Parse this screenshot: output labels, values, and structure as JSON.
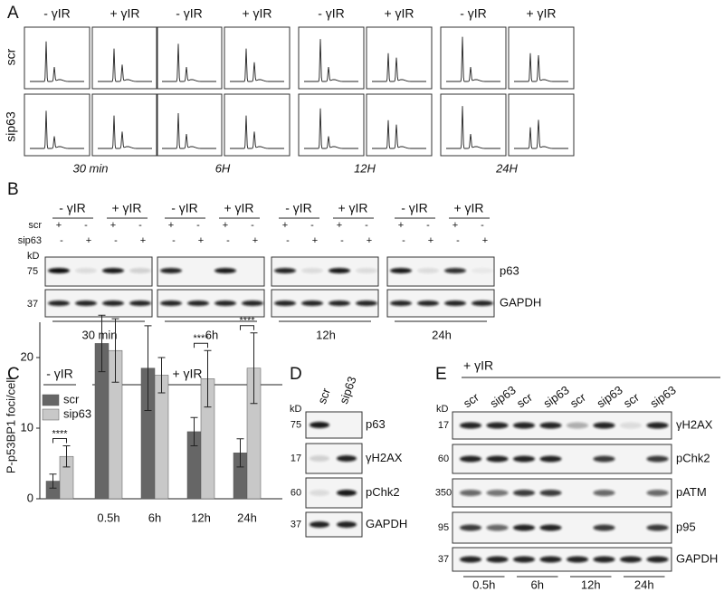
{
  "panel_a": {
    "letter": "A",
    "conditions": [
      "- γIR",
      "+ γIR"
    ],
    "rows": [
      "scr",
      "sip63"
    ],
    "timepoints": [
      "30 min",
      "6H",
      "12H",
      "24H"
    ]
  },
  "panel_b": {
    "letter": "B",
    "conditions": [
      "- γIR",
      "+ γIR"
    ],
    "rows": [
      "scr",
      "sip63"
    ],
    "scr_signs": [
      "+",
      "-",
      "+",
      "-"
    ],
    "sip63_signs": [
      "-",
      "+",
      "-",
      "+"
    ],
    "kd_label": "kD",
    "markers": [
      "75",
      "37"
    ],
    "proteins": [
      "p63",
      "GAPDH"
    ],
    "timepoints": [
      "30 min",
      "6h",
      "12h",
      "24h"
    ]
  },
  "chart_data": {
    "type": "bar",
    "letter": "C",
    "y_label": "P-p53BP1 foci/cell",
    "categories": [
      null,
      "0.5h",
      "6h",
      "12h",
      "24h"
    ],
    "groups": [
      {
        "label": "- γIR",
        "categories": [
          0
        ]
      },
      {
        "label": "+ γIR",
        "categories": [
          1,
          2,
          3,
          4
        ]
      }
    ],
    "series": [
      {
        "name": "scr",
        "color": "#666666",
        "values": [
          2.5,
          22,
          18.5,
          9.5,
          6.5
        ],
        "errors": [
          1,
          4,
          6,
          2,
          2
        ]
      },
      {
        "name": "sip63",
        "color": "#c8c8c8",
        "values": [
          6,
          21,
          17.5,
          17,
          18.5
        ],
        "errors": [
          1.5,
          4.5,
          2.5,
          4,
          5
        ]
      }
    ],
    "significance": [
      {
        "category": 0,
        "label": "****"
      },
      {
        "category": 3,
        "label": "****"
      },
      {
        "category": 4,
        "label": "****"
      }
    ],
    "ylim": [
      0,
      25
    ],
    "yticks": [
      0,
      10,
      20
    ],
    "legend": "top-left"
  },
  "panel_d": {
    "letter": "D",
    "kd_label": "kD",
    "lanes": [
      "scr",
      "sip63"
    ],
    "markers": [
      "75",
      "17",
      "60",
      "37"
    ],
    "proteins": [
      "p63",
      "γH2AX",
      "pChk2",
      "GAPDH"
    ]
  },
  "panel_e": {
    "letter": "E",
    "treatment": "+ γIR",
    "kd_label": "kD",
    "lanes": [
      "scr",
      "sip63",
      "scr",
      "sip63",
      "scr",
      "sip63",
      "scr",
      "sip63"
    ],
    "markers": [
      "17",
      "60",
      "350",
      "95",
      "37"
    ],
    "proteins": [
      "γH2AX",
      "pChk2",
      "pATM",
      "p95",
      "GAPDH"
    ],
    "timepoints": [
      "0.5h",
      "6h",
      "12h",
      "24h"
    ]
  }
}
